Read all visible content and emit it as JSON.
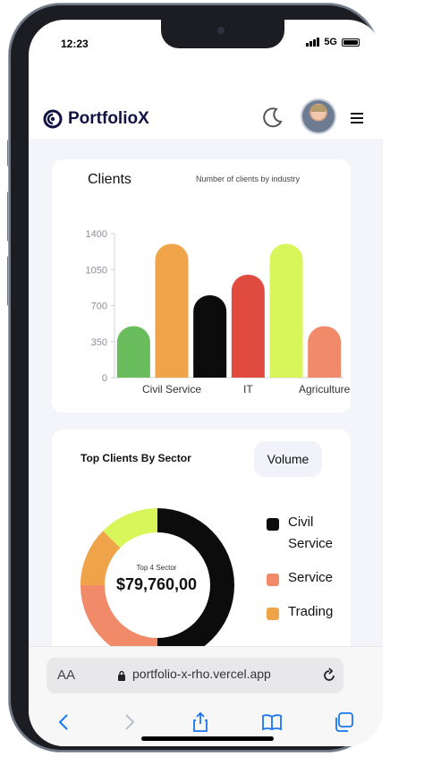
{
  "status_bar": {
    "time": "12:23",
    "network": "5G"
  },
  "header": {
    "brand": "PortfolioX",
    "icons": [
      "moon-icon",
      "avatar",
      "menu-icon"
    ]
  },
  "clients_card": {
    "title": "Clients",
    "subtitle": "Number of clients by industry",
    "chart_data": {
      "type": "bar",
      "categories": [
        "",
        "Civil Service",
        "",
        "IT",
        "",
        "Agriculture"
      ],
      "values": [
        500,
        1300,
        800,
        1000,
        1300,
        500
      ],
      "bar_colors": [
        "#6abd5c",
        "#f0a44a",
        "#0c0c0c",
        "#e04a3f",
        "#d8f55a",
        "#f08a69"
      ],
      "y_ticks": [
        0,
        350,
        700,
        1050,
        1400
      ],
      "ylim": [
        0,
        1400
      ],
      "grid": false
    }
  },
  "sector_card": {
    "title": "Top Clients By Sector",
    "volume_label": "Volume",
    "center_label": "Top 4 Sector",
    "center_value": "$79,760,00",
    "chart_data": {
      "type": "pie",
      "donut": true,
      "labels": [
        "Civil Service",
        "Service",
        "Trading"
      ],
      "legend_placement": "right",
      "legend": [
        {
          "label": "Civil Service",
          "color": "#0c0c0c"
        },
        {
          "label": "Service",
          "color": "#f08a69"
        },
        {
          "label": "Trading",
          "color": "#f0a44a"
        }
      ],
      "slices": [
        {
          "label": "Civil Service",
          "value": 50,
          "color": "#0c0c0c"
        },
        {
          "label": "Service",
          "value": 25,
          "color": "#f08a69"
        },
        {
          "label": "Trading",
          "value": 12.5,
          "color": "#f0a44a"
        },
        {
          "label": "",
          "value": 12.5,
          "color": "#d8f55a"
        }
      ]
    }
  },
  "browser": {
    "aa_label": "AA",
    "url": "portfolio-x-rho.vercel.app"
  }
}
